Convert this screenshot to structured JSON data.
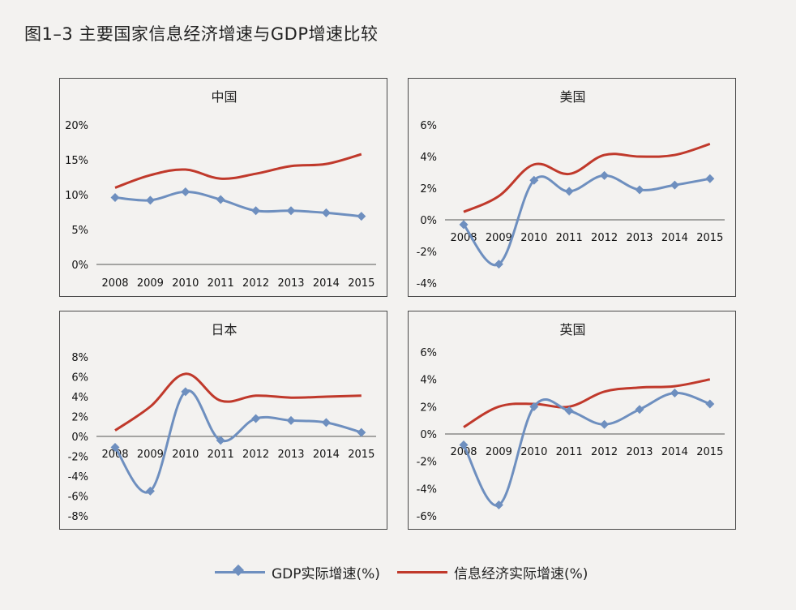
{
  "figure": {
    "title": "图1–3  主要国家信息经济增速与GDP增速比较",
    "legend": [
      {
        "name": "GDP实际增速(%)",
        "color": "#6e8fbf",
        "marker": "diamond"
      },
      {
        "name": "信息经济实际增速(%)",
        "color": "#c0392b",
        "marker": "none"
      }
    ]
  },
  "chart_data": [
    {
      "type": "line",
      "title": "中国",
      "categories": [
        "2008",
        "2009",
        "2010",
        "2011",
        "2012",
        "2013",
        "2014",
        "2015"
      ],
      "ylim": [
        0,
        20
      ],
      "yticks": [
        0,
        5,
        10,
        15,
        20
      ],
      "ytick_labels": [
        "0%",
        "5%",
        "10%",
        "15%",
        "20%"
      ],
      "series": [
        {
          "name": "GDP实际增速(%)",
          "values": [
            9.6,
            9.2,
            10.4,
            9.3,
            7.7,
            7.7,
            7.4,
            6.9
          ]
        },
        {
          "name": "信息经济实际增速(%)",
          "values": [
            11.0,
            12.8,
            13.6,
            12.3,
            13.0,
            14.1,
            14.4,
            15.8
          ]
        }
      ]
    },
    {
      "type": "line",
      "title": "美国",
      "categories": [
        "2008",
        "2009",
        "2010",
        "2011",
        "2012",
        "2013",
        "2014",
        "2015"
      ],
      "ylim": [
        -4,
        6
      ],
      "yticks": [
        -4,
        -2,
        0,
        2,
        4,
        6
      ],
      "ytick_labels": [
        "-4%",
        "-2%",
        "0%",
        "2%",
        "4%",
        "6%"
      ],
      "series": [
        {
          "name": "GDP实际增速(%)",
          "values": [
            -0.3,
            -2.8,
            2.5,
            1.8,
            2.8,
            1.9,
            2.2,
            2.6
          ]
        },
        {
          "name": "信息经济实际增速(%)",
          "values": [
            0.5,
            1.5,
            3.5,
            2.9,
            4.1,
            4.0,
            4.1,
            4.8
          ]
        }
      ]
    },
    {
      "type": "line",
      "title": "日本",
      "categories": [
        "2008",
        "2009",
        "2010",
        "2011",
        "2012",
        "2013",
        "2014",
        "2015"
      ],
      "ylim": [
        -8,
        8
      ],
      "yticks": [
        -8,
        -6,
        -4,
        -2,
        0,
        2,
        4,
        6,
        8
      ],
      "ytick_labels": [
        "-8%",
        "-6%",
        "-4%",
        "-2%",
        "0%",
        "2%",
        "4%",
        "6%",
        "8%"
      ],
      "series": [
        {
          "name": "GDP实际增速(%)",
          "values": [
            -1.1,
            -5.5,
            4.5,
            -0.4,
            1.8,
            1.6,
            1.4,
            0.4
          ]
        },
        {
          "name": "信息经济实际增速(%)",
          "values": [
            0.6,
            3.0,
            6.3,
            3.6,
            4.1,
            3.9,
            4.0,
            4.1
          ]
        }
      ]
    },
    {
      "type": "line",
      "title": "英国",
      "categories": [
        "2008",
        "2009",
        "2010",
        "2011",
        "2012",
        "2013",
        "2014",
        "2015"
      ],
      "ylim": [
        -6,
        6
      ],
      "yticks": [
        -6,
        -4,
        -2,
        0,
        2,
        4,
        6
      ],
      "ytick_labels": [
        "-6%",
        "-4%",
        "-2%",
        "0%",
        "2%",
        "4%",
        "6%"
      ],
      "series": [
        {
          "name": "GDP实际增速(%)",
          "values": [
            -0.8,
            -5.2,
            2.0,
            1.7,
            0.7,
            1.8,
            3.0,
            2.2
          ]
        },
        {
          "name": "信息经济实际增速(%)",
          "values": [
            0.5,
            2.0,
            2.2,
            2.0,
            3.1,
            3.4,
            3.5,
            4.0
          ]
        }
      ]
    }
  ]
}
